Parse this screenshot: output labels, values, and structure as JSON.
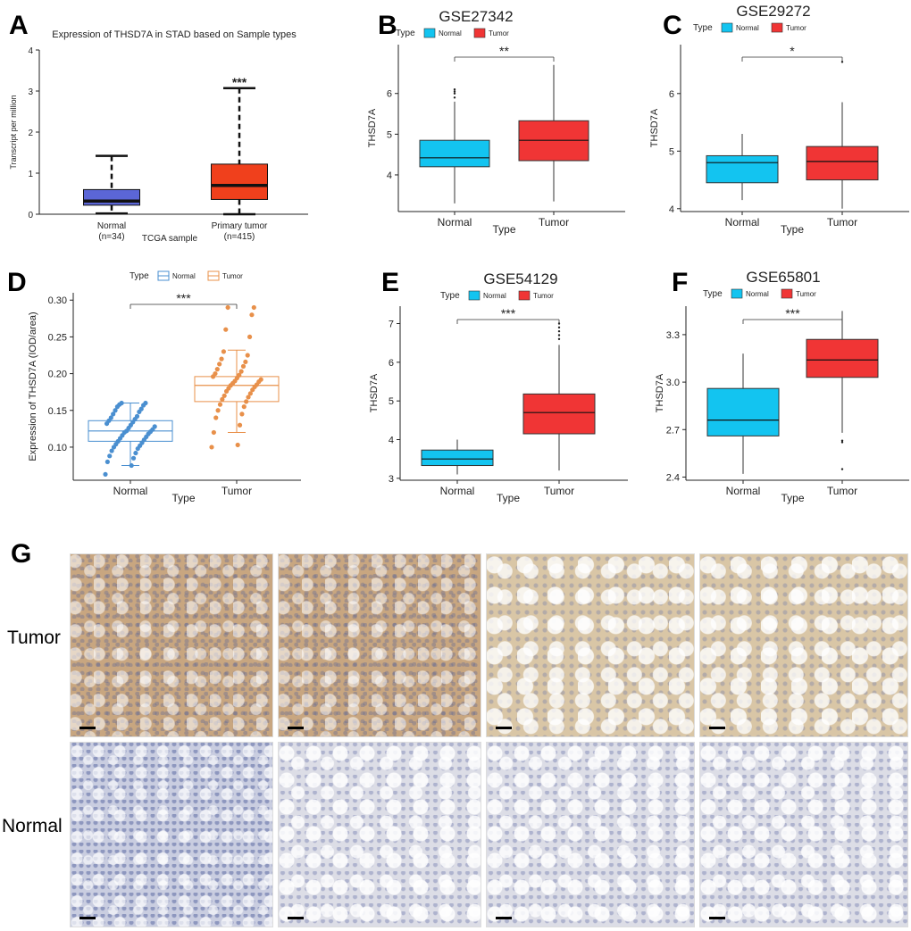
{
  "panels": [
    "A",
    "B",
    "C",
    "D",
    "E",
    "F",
    "G"
  ],
  "chart_data": [
    {
      "id": "A",
      "type": "box",
      "title": "Expression of THSD7A in STAD based on Sample types",
      "xlabel": "TCGA sample",
      "ylabel": "Transcript per million",
      "ylim": [
        0,
        4
      ],
      "yticks": [
        "0",
        "1",
        "2",
        "3",
        "4"
      ],
      "categories": [
        "Normal\n(n=34)",
        "Primary tumor\n(n=415)"
      ],
      "category_lines": [
        [
          "Normal",
          "(n=34)"
        ],
        [
          "Primary tumor",
          "(n=415)"
        ]
      ],
      "boxes": [
        {
          "min": 0.02,
          "q1": 0.22,
          "median": 0.32,
          "q3": 0.6,
          "max": 1.42,
          "color": "#5b66d6"
        },
        {
          "min": 0.0,
          "q1": 0.36,
          "median": 0.7,
          "q3": 1.22,
          "max": 3.07,
          "color": "#f0401c"
        }
      ],
      "significance": "***"
    },
    {
      "id": "B",
      "type": "box",
      "title": "GSE27342",
      "legend_title": "Type",
      "legend": [
        "Normal",
        "Tumor"
      ],
      "xlabel": "Type",
      "ylabel": "THSD7A",
      "ylim": [
        3.1,
        7.2
      ],
      "yticks": [
        "4",
        "5",
        "6"
      ],
      "ytick_values": [
        4,
        5,
        6
      ],
      "categories": [
        "Normal",
        "Tumor"
      ],
      "boxes": [
        {
          "min": 3.3,
          "q1": 4.2,
          "median": 4.42,
          "q3": 4.85,
          "max": 5.8,
          "outliers": [
            5.9,
            6.0,
            6.05,
            6.1
          ],
          "color": "#13c4f0"
        },
        {
          "min": 3.35,
          "q1": 4.35,
          "median": 4.85,
          "q3": 5.33,
          "max": 6.7,
          "outliers": [],
          "color": "#f03535"
        }
      ],
      "significance": "**"
    },
    {
      "id": "C",
      "type": "box",
      "title": "GSE29272",
      "legend_title": "Type",
      "legend": [
        "Normal",
        "Tumor"
      ],
      "xlabel": "Type",
      "ylabel": "THSD7A",
      "ylim": [
        3.95,
        6.85
      ],
      "yticks": [
        "4",
        "5",
        "6"
      ],
      "ytick_values": [
        4,
        5,
        6
      ],
      "categories": [
        "Normal",
        "Tumor"
      ],
      "boxes": [
        {
          "min": 4.15,
          "q1": 4.45,
          "median": 4.8,
          "q3": 4.92,
          "max": 5.3,
          "outliers": [],
          "color": "#13c4f0"
        },
        {
          "min": 4.0,
          "q1": 4.5,
          "median": 4.82,
          "q3": 5.08,
          "max": 5.85,
          "outliers": [
            6.55
          ],
          "color": "#f03535"
        }
      ],
      "significance": "*"
    },
    {
      "id": "D",
      "type": "box",
      "legend_title": "Type",
      "legend": [
        "Normal",
        "Tumor"
      ],
      "xlabel": "Type",
      "ylabel": "Expression of THSD7A (IOD/area)",
      "ylim": [
        0.055,
        0.31
      ],
      "yticks": [
        "0.10",
        "0.15",
        "0.20",
        "0.25",
        "0.30"
      ],
      "ytick_values": [
        0.1,
        0.15,
        0.2,
        0.25,
        0.3
      ],
      "categories": [
        "Normal",
        "Tumor"
      ],
      "boxes": [
        {
          "min": 0.075,
          "q1": 0.108,
          "median": 0.122,
          "q3": 0.136,
          "max": 0.16,
          "color": "#4a8fd0",
          "fill": "none"
        },
        {
          "min": 0.12,
          "q1": 0.162,
          "median": 0.184,
          "q3": 0.196,
          "max": 0.232,
          "color": "#e8904a",
          "fill": "none"
        }
      ],
      "points": [
        {
          "group": 0,
          "y": [
            0.063,
            0.075,
            0.08,
            0.085,
            0.088,
            0.092,
            0.095,
            0.098,
            0.1,
            0.102,
            0.104,
            0.106,
            0.108,
            0.11,
            0.112,
            0.114,
            0.116,
            0.118,
            0.12,
            0.121,
            0.122,
            0.124,
            0.126,
            0.128,
            0.13,
            0.132,
            0.134,
            0.136,
            0.138,
            0.14,
            0.142,
            0.145,
            0.148,
            0.15,
            0.152,
            0.155,
            0.157,
            0.158,
            0.16,
            0.16
          ]
        },
        {
          "group": 1,
          "y": [
            0.1,
            0.103,
            0.12,
            0.13,
            0.14,
            0.145,
            0.15,
            0.155,
            0.158,
            0.162,
            0.165,
            0.168,
            0.17,
            0.173,
            0.176,
            0.178,
            0.18,
            0.182,
            0.184,
            0.185,
            0.187,
            0.189,
            0.19,
            0.192,
            0.194,
            0.196,
            0.198,
            0.2,
            0.203,
            0.206,
            0.21,
            0.213,
            0.216,
            0.22,
            0.225,
            0.23,
            0.25,
            0.26,
            0.28,
            0.29,
            0.29
          ]
        }
      ],
      "significance": "***"
    },
    {
      "id": "E",
      "type": "box",
      "title": "GSE54129",
      "legend_title": "Type",
      "legend": [
        "Normal",
        "Tumor"
      ],
      "xlabel": "Type",
      "ylabel": "THSD7A",
      "ylim": [
        2.95,
        7.45
      ],
      "yticks": [
        "3",
        "4",
        "5",
        "6",
        "7"
      ],
      "ytick_values": [
        3,
        4,
        5,
        6,
        7
      ],
      "categories": [
        "Normal",
        "Tumor"
      ],
      "boxes": [
        {
          "min": 3.1,
          "q1": 3.33,
          "median": 3.5,
          "q3": 3.73,
          "max": 4.0,
          "outliers": [],
          "color": "#13c4f0"
        },
        {
          "min": 3.2,
          "q1": 4.15,
          "median": 4.7,
          "q3": 5.18,
          "max": 6.45,
          "outliers": [
            6.6,
            6.7,
            6.8,
            6.9,
            7.0
          ],
          "color": "#f03535"
        }
      ],
      "significance": "***"
    },
    {
      "id": "F",
      "type": "box",
      "title": "GSE65801",
      "legend_title": "Type",
      "legend": [
        "Normal",
        "Tumor"
      ],
      "xlabel": "Type",
      "ylabel": "THSD7A",
      "ylim": [
        2.38,
        3.48
      ],
      "yticks": [
        "2.4",
        "2.7",
        "3.0",
        "3.3"
      ],
      "ytick_values": [
        2.4,
        2.7,
        3.0,
        3.3
      ],
      "categories": [
        "Normal",
        "Tumor"
      ],
      "boxes": [
        {
          "min": 2.42,
          "q1": 2.66,
          "median": 2.76,
          "q3": 2.96,
          "max": 3.18,
          "outliers": [],
          "color": "#13c4f0"
        },
        {
          "min": 2.68,
          "q1": 3.03,
          "median": 3.14,
          "q3": 3.27,
          "max": 3.45,
          "outliers": [
            2.62,
            2.63,
            2.45
          ],
          "color": "#f03535"
        }
      ],
      "significance": "***"
    }
  ],
  "ihc": {
    "row_labels": [
      "Tumor",
      "Normal"
    ]
  }
}
